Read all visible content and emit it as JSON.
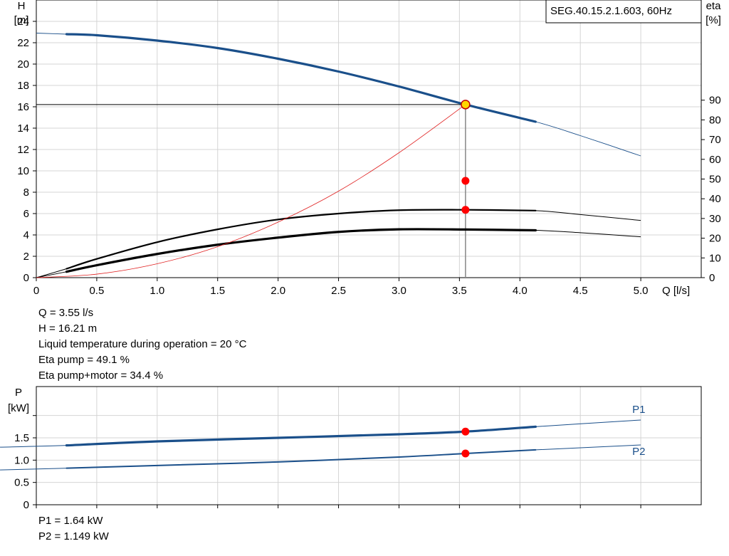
{
  "chart_data": [
    {
      "type": "line",
      "legend_text": "SEG.40.15.2.1.603, 60Hz",
      "legend_position": "top-right",
      "grid": true,
      "xlabel": "Q [l/s]",
      "xlim": [
        0,
        5.5
      ],
      "x_ticks": [
        "0",
        "0.5",
        "1.0",
        "1.5",
        "2.0",
        "2.5",
        "3.0",
        "3.5",
        "4.0",
        "4.5",
        "5.0"
      ],
      "y_axis_left": {
        "label_line1": "H",
        "label_line2": "[m]",
        "ylim": [
          0,
          26
        ],
        "ticks": [
          "0",
          "2",
          "4",
          "6",
          "8",
          "10",
          "12",
          "14",
          "16",
          "18",
          "20",
          "22",
          "24"
        ]
      },
      "y_axis_right": {
        "label_line1": "eta",
        "label_line2": "[%]",
        "ylim": [
          0,
          90
        ],
        "ticks": [
          "0",
          "10",
          "20",
          "30",
          "40",
          "50",
          "60",
          "70",
          "80",
          "90"
        ]
      },
      "series": [
        {
          "axis": "left",
          "color": "#1a4f8a",
          "x": [
            0,
            0.25,
            0.5,
            1.0,
            1.5,
            2.0,
            2.5,
            3.0,
            3.55,
            4.13,
            4.5,
            5.0
          ],
          "y": [
            22.9,
            22.8,
            22.7,
            22.2,
            21.5,
            20.5,
            19.3,
            17.9,
            16.21,
            14.6,
            13.3,
            11.4
          ],
          "bold_range": [
            0.25,
            4.13
          ]
        },
        {
          "axis": "right",
          "color": "#000000",
          "x": [
            0,
            0.25,
            0.5,
            1.0,
            1.5,
            2.0,
            2.5,
            3.0,
            3.55,
            4.13,
            4.5,
            5.0
          ],
          "y": [
            0,
            4.5,
            9.5,
            18,
            24.5,
            29.5,
            32.5,
            34.2,
            34.4,
            34,
            32,
            29
          ],
          "bold_range": [
            0.25,
            4.13
          ]
        },
        {
          "axis": "right",
          "color": "#000000",
          "x": [
            0,
            0.25,
            0.5,
            1.0,
            1.5,
            2.0,
            2.5,
            3.0,
            3.55,
            4.13,
            4.5,
            5.0
          ],
          "y": [
            0,
            3,
            6.3,
            12,
            16.7,
            20.3,
            23.2,
            24.5,
            24.4,
            24,
            22.8,
            20.7
          ],
          "bold_range": [
            0.25,
            4.13
          ]
        },
        {
          "axis": "left",
          "color": "#e02020",
          "x": [
            0,
            0.5,
            1.0,
            1.5,
            2.0,
            2.5,
            3.0,
            3.55
          ],
          "y": [
            0,
            0.33,
            1.3,
            2.9,
            5.2,
            8.1,
            11.7,
            16.21
          ]
        }
      ],
      "operating_point": {
        "x": 3.55,
        "H": 16.21,
        "eta_pump": 49.1,
        "eta_pump_motor": 34.4
      }
    },
    {
      "type": "line",
      "grid": true,
      "xlim": [
        0,
        5.5
      ],
      "y_axis_left": {
        "label_line1": "P",
        "label_line2": "[kW]",
        "ylim": [
          0,
          2.5
        ],
        "ticks": [
          "0",
          "0.5",
          "1.0",
          "1.5"
        ]
      },
      "series": [
        {
          "name": "P1",
          "color": "#1a4f8a",
          "x": [
            -0.3,
            0.25,
            1.0,
            2.0,
            3.0,
            3.55,
            4.13,
            5.0
          ],
          "y": [
            1.29,
            1.33,
            1.42,
            1.5,
            1.58,
            1.64,
            1.75,
            1.9
          ],
          "bold_range": [
            0.25,
            4.13
          ]
        },
        {
          "name": "P2",
          "color": "#1a4f8a",
          "x": [
            -0.3,
            0.25,
            1.0,
            2.0,
            3.0,
            3.55,
            4.13,
            5.0
          ],
          "y": [
            0.78,
            0.82,
            0.88,
            0.96,
            1.07,
            1.149,
            1.23,
            1.34
          ],
          "bold_range": [
            0.25,
            4.13
          ]
        }
      ],
      "operating_point": {
        "x": 3.55,
        "P1": 1.64,
        "P2": 1.149
      }
    }
  ],
  "info": {
    "q": "Q = 3.55 l/s",
    "h": "H = 16.21 m",
    "temp": "Liquid temperature during operation = 20 °C",
    "eta_pump": "Eta pump = 49.1 %",
    "eta_pump_motor": "Eta pump+motor = 34.4 %",
    "p1": "P1 = 1.64 kW",
    "p2": "P2 = 1.149 kW"
  },
  "colors": {
    "grid": "#d4d4d4",
    "curve_blue": "#1a4f8a",
    "curve_red": "#e02020",
    "marker_red": "#ff0000",
    "marker_yellow": "#ffd700"
  }
}
